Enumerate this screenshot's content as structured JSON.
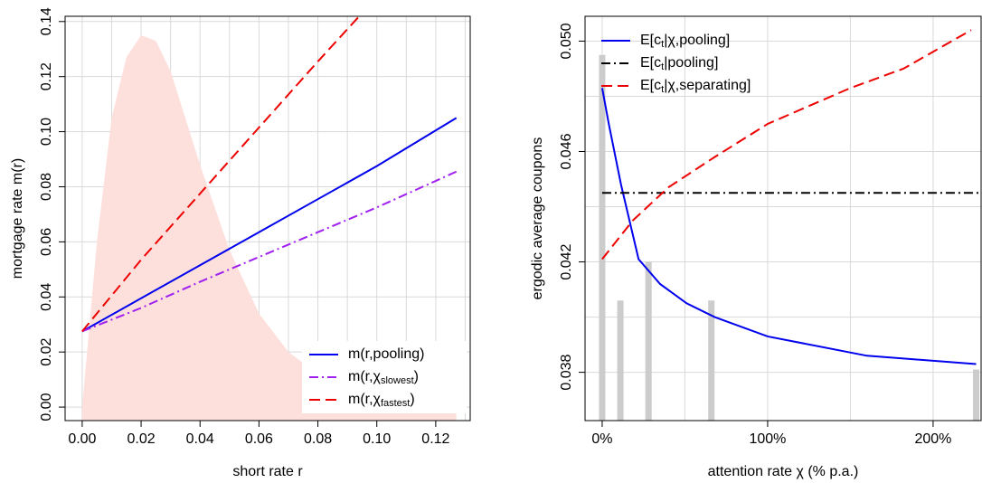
{
  "chart_data": [
    {
      "type": "line",
      "xlabel": "short rate r",
      "ylabel": "mortgage rate m(r)",
      "xlim": [
        -0.0058,
        0.1317
      ],
      "ylim": [
        -0.0049,
        0.1419
      ],
      "xticks": [
        {
          "value": 0,
          "label": "0.00"
        },
        0.02,
        0.04,
        0.06,
        0.08,
        {
          "value": 0.1,
          "label": "0.10"
        },
        0.12
      ],
      "yticks": [
        {
          "value": 0,
          "label": "0.00"
        },
        0.02,
        0.04,
        0.06,
        0.08,
        {
          "value": 0.1,
          "label": "0.10"
        },
        0.12,
        0.14
      ],
      "xgrid_minor": [
        0.01,
        0.03,
        0.05,
        0.07,
        0.09,
        0.11,
        0.13
      ],
      "grid": true,
      "legend": "bottom-right",
      "series": [
        {
          "kind": "area",
          "color": "#fde0dc",
          "x": [
            0,
            0.005,
            0.01,
            0.015,
            0.02,
            0.025,
            0.03,
            0.035,
            0.04,
            0.05,
            0.06,
            0.07,
            0.08,
            0.09,
            0.1,
            0.11,
            0.12,
            0.127
          ],
          "values": [
            0,
            0.06,
            0.105,
            0.127,
            0.135,
            0.133,
            0.122,
            0.105,
            0.088,
            0.057,
            0.034,
            0.02,
            0.012,
            0.007,
            0.004,
            0.0025,
            0.0015,
            0.001
          ]
        },
        {
          "kind": "line",
          "name": "m(r,pooling)",
          "color": "#0000ee",
          "dash": "solid",
          "x": [
            0,
            0.02,
            0.04,
            0.06,
            0.08,
            0.1,
            0.127
          ],
          "values": [
            0.0275,
            0.0395,
            0.0515,
            0.0635,
            0.0755,
            0.0875,
            0.105
          ]
        },
        {
          "kind": "line",
          "name": "m(r,χ",
          "name_sub": "slowest",
          "name_end": ")",
          "color": "#a020f0",
          "dash": "dashdot",
          "x": [
            0,
            0.02,
            0.04,
            0.06,
            0.08,
            0.1,
            0.127
          ],
          "values": [
            0.0275,
            0.036,
            0.0455,
            0.0545,
            0.0635,
            0.0725,
            0.0855
          ]
        },
        {
          "kind": "line",
          "name": "m(r,χ",
          "name_sub": "fastest",
          "name_end": ")",
          "color": "#ee0000",
          "dash": "dashed",
          "x": [
            0,
            0.02,
            0.04,
            0.06,
            0.08,
            0.094
          ],
          "values": [
            0.0275,
            0.0535,
            0.0775,
            0.1015,
            0.1255,
            0.1419
          ]
        }
      ]
    },
    {
      "type": "line",
      "xlabel": "attention rate χ  (% p.a.)",
      "ylabel": "ergodic average coupons",
      "xlim": [
        -10.35,
        229
      ],
      "ylim": [
        0.03625,
        0.0509
      ],
      "xticks": [
        {
          "value": 0,
          "label": "0%"
        },
        {
          "value": 100,
          "label": "100%"
        },
        {
          "value": 200,
          "label": "200%"
        }
      ],
      "yticks": [
        0.038,
        0.042,
        0.046,
        {
          "value": 0.05,
          "label": "0.050"
        }
      ],
      "xgrid_minor": [
        50,
        150
      ],
      "ygrid_minor": [
        0.04,
        0.044,
        0.048
      ],
      "grid": true,
      "legend": "top-left",
      "series": [
        {
          "kind": "bar",
          "color": "#cccccc",
          "x": [
            0,
            11,
            28,
            66,
            226
          ],
          "values": [
            0.0495,
            0.0406,
            0.042,
            0.0406,
            0.0381
          ]
        },
        {
          "kind": "line",
          "name": "E[c",
          "name_sub": "t",
          "name_end": "|χ,pooling]",
          "color": "#0000ee",
          "dash": "solid",
          "x": [
            0,
            4,
            11.4,
            22,
            35,
            51,
            68,
            100,
            160,
            226
          ],
          "values": [
            0.0483,
            0.047,
            0.0448,
            0.0421,
            0.0412,
            0.0405,
            0.04,
            0.0393,
            0.0386,
            0.0383
          ]
        },
        {
          "kind": "line",
          "name": "E[c",
          "name_sub": "t",
          "name_end": "|pooling]",
          "color": "#000000",
          "dash": "dashdot",
          "x": [
            0,
            229
          ],
          "values": [
            0.0445,
            0.0445
          ]
        },
        {
          "kind": "line",
          "name": "E[c",
          "name_sub": "t",
          "name_end": "|χ,separating]",
          "color": "#ee0000",
          "dash": "dashed",
          "x": [
            0,
            18.5,
            40,
            68,
            100,
            150,
            182,
            223
          ],
          "values": [
            0.0421,
            0.0435,
            0.0447,
            0.0458,
            0.047,
            0.0483,
            0.049,
            0.0504
          ]
        }
      ]
    }
  ]
}
